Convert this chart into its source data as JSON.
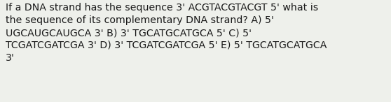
{
  "text": "If a DNA strand has the sequence 3' ACGTACGTACGT 5' what is\nthe sequence of its complementary DNA strand? A) 5'\nUGCAUGCAUGCA 3' B) 3' TGCATGCATGCA 5' C) 5'\nTCGATCGATCGA 3' D) 3' TCGATCGATCGA 5' E) 5' TGCATGCATGCA\n3'",
  "background_color": "#eef0eb",
  "text_color": "#1a1a1a",
  "font_size": 10.2,
  "fig_width": 5.58,
  "fig_height": 1.46,
  "dpi": 100
}
